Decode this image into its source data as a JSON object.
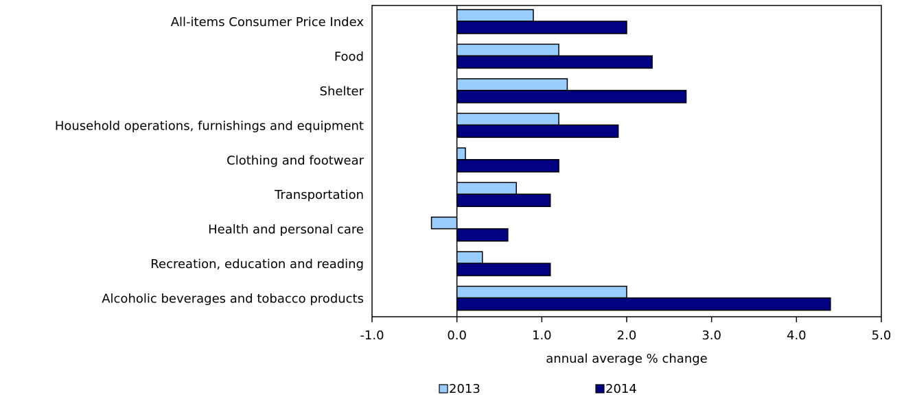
{
  "chart_data": {
    "type": "bar",
    "orientation": "horizontal",
    "x_label": "annual average % change",
    "categories": [
      "All-items Consumer Price Index",
      "Food",
      "Shelter",
      "Household operations, furnishings and equipment",
      "Clothing and footwear",
      "Transportation",
      "Health and personal care",
      "Recreation, education and reading",
      "Alcoholic beverages and tobacco products"
    ],
    "series": [
      {
        "name": "2013",
        "color": "#99ccff",
        "values": [
          0.9,
          1.2,
          1.3,
          1.2,
          0.1,
          0.7,
          -0.3,
          0.3,
          2.0
        ]
      },
      {
        "name": "2014",
        "color": "#000080",
        "values": [
          2.0,
          2.3,
          2.7,
          1.9,
          1.2,
          1.1,
          0.6,
          1.1,
          4.4
        ]
      }
    ],
    "xlim": [
      -1,
      5
    ],
    "xticks": [
      {
        "value": -1,
        "label": "-1.0"
      },
      {
        "value": 0,
        "label": "0.0"
      },
      {
        "value": 1,
        "label": "1.0"
      },
      {
        "value": 2,
        "label": "2.0"
      },
      {
        "value": 3,
        "label": "3.0"
      },
      {
        "value": 4,
        "label": "4.0"
      },
      {
        "value": 5,
        "label": "5.0"
      }
    ],
    "grid": false
  }
}
